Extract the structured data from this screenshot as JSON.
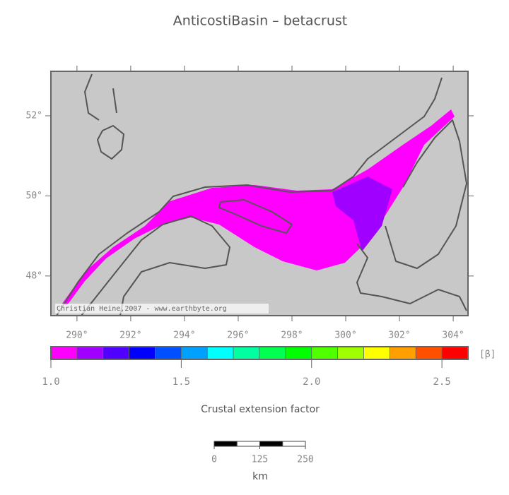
{
  "title": "AnticostiBasin – betacrust",
  "map": {
    "xlim": [
      289.03,
      304.55
    ],
    "ylim": [
      47.01,
      53.11
    ],
    "xticks": [
      {
        "value": 290,
        "label": "290°"
      },
      {
        "value": 292,
        "label": "292°"
      },
      {
        "value": 294,
        "label": "294°"
      },
      {
        "value": 296,
        "label": "296°"
      },
      {
        "value": 298,
        "label": "298°"
      },
      {
        "value": 300,
        "label": "300°"
      },
      {
        "value": 302,
        "label": "302°"
      },
      {
        "value": 304,
        "label": "304°"
      }
    ],
    "yticks": [
      {
        "value": 48,
        "label": "48°"
      },
      {
        "value": 50,
        "label": "50°"
      },
      {
        "value": 52,
        "label": "52°"
      }
    ],
    "credit": "Christian Heine,2007 - www.earthbyte.org"
  },
  "colorbar": {
    "label": "Crustal extension factor",
    "unit": "[β]",
    "xlim": [
      1.0,
      2.6
    ],
    "colors": [
      "#ff00ff",
      "#a000ff",
      "#5000ff",
      "#0000ff",
      "#0050ff",
      "#00a0ff",
      "#00ffff",
      "#00ffa0",
      "#00ff50",
      "#00ff00",
      "#50ff00",
      "#a0ff00",
      "#ffff00",
      "#ffa000",
      "#ff5000",
      "#ff0000"
    ],
    "ticks": [
      {
        "value": 1.0,
        "label": "1.0"
      },
      1.5,
      {
        "value": 2.0,
        "label": "2.0"
      },
      2.5
    ]
  },
  "scalebar": {
    "unit": "km",
    "xlim": [
      0,
      250
    ],
    "ticks": [
      0,
      125,
      250
    ]
  }
}
